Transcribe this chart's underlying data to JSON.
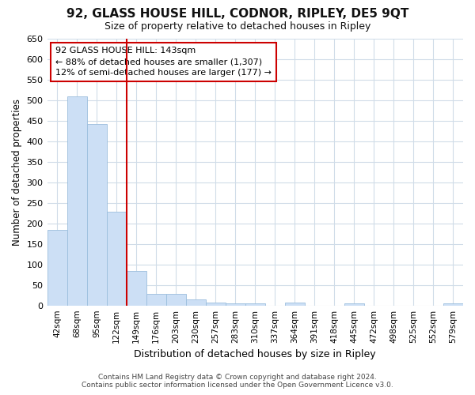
{
  "title": "92, GLASS HOUSE HILL, CODNOR, RIPLEY, DE5 9QT",
  "subtitle": "Size of property relative to detached houses in Ripley",
  "xlabel": "Distribution of detached houses by size in Ripley",
  "ylabel": "Number of detached properties",
  "bar_color": "#ccdff5",
  "bar_edge_color": "#9bbedd",
  "categories": [
    "42sqm",
    "68sqm",
    "95sqm",
    "122sqm",
    "149sqm",
    "176sqm",
    "203sqm",
    "230sqm",
    "257sqm",
    "283sqm",
    "310sqm",
    "337sqm",
    "364sqm",
    "391sqm",
    "418sqm",
    "445sqm",
    "472sqm",
    "498sqm",
    "525sqm",
    "552sqm",
    "579sqm"
  ],
  "values": [
    185,
    510,
    443,
    228,
    85,
    28,
    28,
    14,
    8,
    5,
    5,
    0,
    8,
    0,
    0,
    5,
    0,
    0,
    0,
    0,
    5
  ],
  "vline_color": "#cc0000",
  "ylim": [
    0,
    650
  ],
  "yticks": [
    0,
    50,
    100,
    150,
    200,
    250,
    300,
    350,
    400,
    450,
    500,
    550,
    600,
    650
  ],
  "annotation_lines": [
    "92 GLASS HOUSE HILL: 143sqm",
    "← 88% of detached houses are smaller (1,307)",
    "12% of semi-detached houses are larger (177) →"
  ],
  "footer1": "Contains HM Land Registry data © Crown copyright and database right 2024.",
  "footer2": "Contains public sector information licensed under the Open Government Licence v3.0.",
  "background_color": "#ffffff",
  "axes_bg_color": "#ffffff",
  "grid_color": "#d0dce8"
}
